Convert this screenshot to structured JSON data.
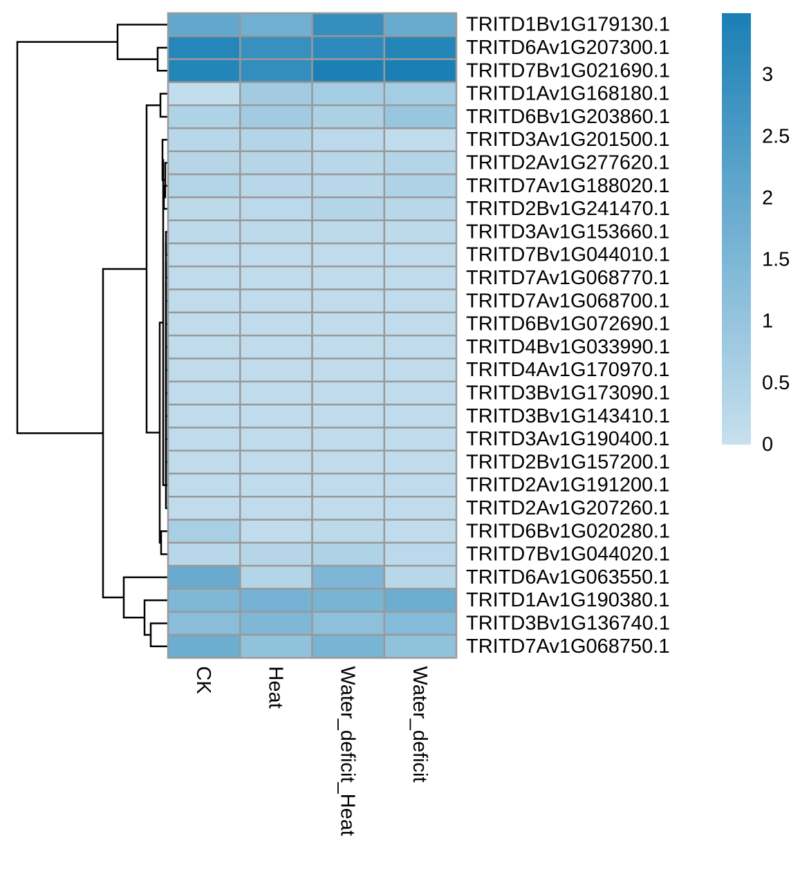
{
  "chart_data": {
    "type": "heatmap",
    "title": "",
    "xlabel": "",
    "ylabel": "",
    "columns": [
      "CK",
      "Heat",
      "Water_deficit_Heat",
      "Water_deficit"
    ],
    "rows": [
      "TRITD1Bv1G179130.1",
      "TRITD6Av1G207300.1",
      "TRITD7Bv1G021690.1",
      "TRITD1Av1G168180.1",
      "TRITD6Bv1G203860.1",
      "TRITD3Av1G201500.1",
      "TRITD2Av1G277620.1",
      "TRITD7Av1G188020.1",
      "TRITD2Bv1G241470.1",
      "TRITD3Av1G153660.1",
      "TRITD7Bv1G044010.1",
      "TRITD7Av1G068770.1",
      "TRITD7Av1G068700.1",
      "TRITD6Bv1G072690.1",
      "TRITD4Bv1G033990.1",
      "TRITD4Av1G170970.1",
      "TRITD3Bv1G173090.1",
      "TRITD3Bv1G143410.1",
      "TRITD3Av1G190400.1",
      "TRITD2Bv1G157200.1",
      "TRITD2Av1G191200.1",
      "TRITD2Av1G207260.1",
      "TRITD6Bv1G020280.1",
      "TRITD7Bv1G044020.1",
      "TRITD6Av1G063550.1",
      "TRITD1Av1G190380.1",
      "TRITD3Bv1G136740.1",
      "TRITD7Av1G068750.1"
    ],
    "values": [
      [
        2.05,
        1.75,
        2.95,
        1.9
      ],
      [
        3.25,
        2.9,
        3.1,
        3.3
      ],
      [
        3.3,
        3.0,
        3.45,
        3.5
      ],
      [
        0.1,
        0.75,
        0.7,
        0.7
      ],
      [
        0.5,
        0.75,
        0.55,
        0.95
      ],
      [
        0.3,
        0.4,
        0.25,
        0.15
      ],
      [
        0.35,
        0.35,
        0.3,
        0.4
      ],
      [
        0.4,
        0.3,
        0.3,
        0.5
      ],
      [
        0.2,
        0.25,
        0.4,
        0.3
      ],
      [
        0.2,
        0.2,
        0.2,
        0.2
      ],
      [
        0.15,
        0.15,
        0.15,
        0.15
      ],
      [
        0.15,
        0.15,
        0.15,
        0.15
      ],
      [
        0.15,
        0.15,
        0.15,
        0.15
      ],
      [
        0.15,
        0.15,
        0.15,
        0.15
      ],
      [
        0.15,
        0.15,
        0.15,
        0.15
      ],
      [
        0.15,
        0.15,
        0.15,
        0.15
      ],
      [
        0.15,
        0.15,
        0.15,
        0.15
      ],
      [
        0.15,
        0.15,
        0.15,
        0.15
      ],
      [
        0.15,
        0.15,
        0.15,
        0.15
      ],
      [
        0.15,
        0.15,
        0.15,
        0.15
      ],
      [
        0.15,
        0.15,
        0.15,
        0.15
      ],
      [
        0.15,
        0.15,
        0.15,
        0.15
      ],
      [
        0.6,
        0.15,
        0.2,
        0.15
      ],
      [
        0.3,
        0.35,
        0.5,
        0.25
      ],
      [
        1.9,
        0.4,
        1.5,
        0.3
      ],
      [
        1.45,
        1.65,
        1.6,
        1.85
      ],
      [
        1.25,
        1.45,
        1.15,
        1.35
      ],
      [
        1.85,
        1.1,
        1.6,
        1.1
      ]
    ],
    "color_scale": {
      "min": 0,
      "max": 3.5,
      "low_color": "#c7e0ee",
      "high_color": "#1a7fb5",
      "ticks": [
        0,
        0.5,
        1,
        1.5,
        2,
        2.5,
        3
      ],
      "tick_labels": [
        "0",
        "0.5",
        "1",
        "1.5",
        "2",
        "2.5",
        "3"
      ]
    },
    "cell_border_color": "#999999",
    "legend_placement": "right",
    "row_dendrogram": true,
    "row_order_note": ""
  }
}
